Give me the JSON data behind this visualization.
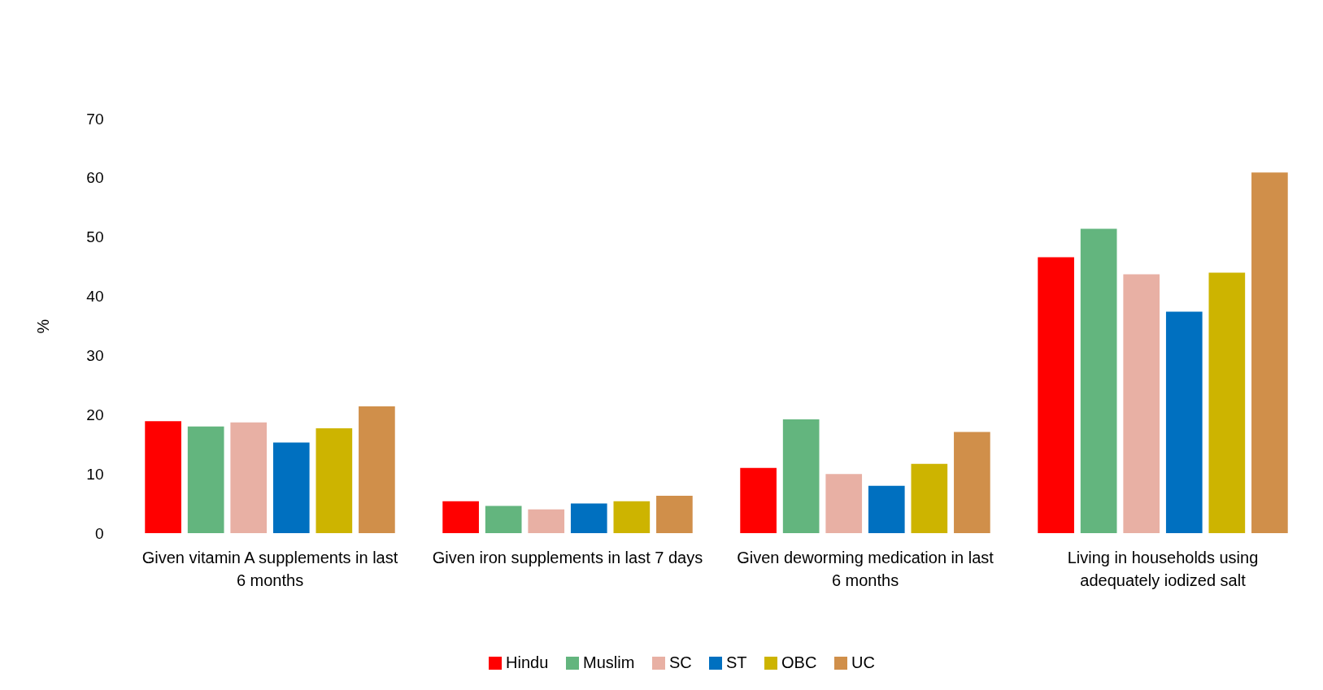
{
  "chart_data": {
    "type": "bar",
    "ylabel": "%",
    "categories": [
      "Given vitamin A supplements in last\n6 months",
      "Given iron supplements in last 7 days",
      "Given deworming medication in last\n6 months",
      "Living in households using\nadequately iodized salt"
    ],
    "series": [
      {
        "name": "Hindu",
        "color": "#ff0000",
        "values": [
          18.9,
          5.4,
          11.0,
          46.6
        ]
      },
      {
        "name": "Muslim",
        "color": "#63b57e",
        "values": [
          18.0,
          4.6,
          19.2,
          51.4
        ]
      },
      {
        "name": "SC",
        "color": "#e8b0a4",
        "values": [
          18.7,
          4.0,
          10.0,
          43.7
        ]
      },
      {
        "name": "ST",
        "color": "#0070c0",
        "values": [
          15.3,
          5.0,
          8.0,
          37.4
        ]
      },
      {
        "name": "OBC",
        "color": "#cdb400",
        "values": [
          17.7,
          5.4,
          11.7,
          44.0
        ]
      },
      {
        "name": "UC",
        "color": "#d08f4a",
        "values": [
          21.4,
          6.3,
          17.1,
          60.9
        ]
      }
    ],
    "ylim": [
      0,
      70
    ],
    "yticks": [
      0,
      10,
      20,
      30,
      40,
      50,
      60,
      70
    ],
    "legend": "bottom"
  }
}
